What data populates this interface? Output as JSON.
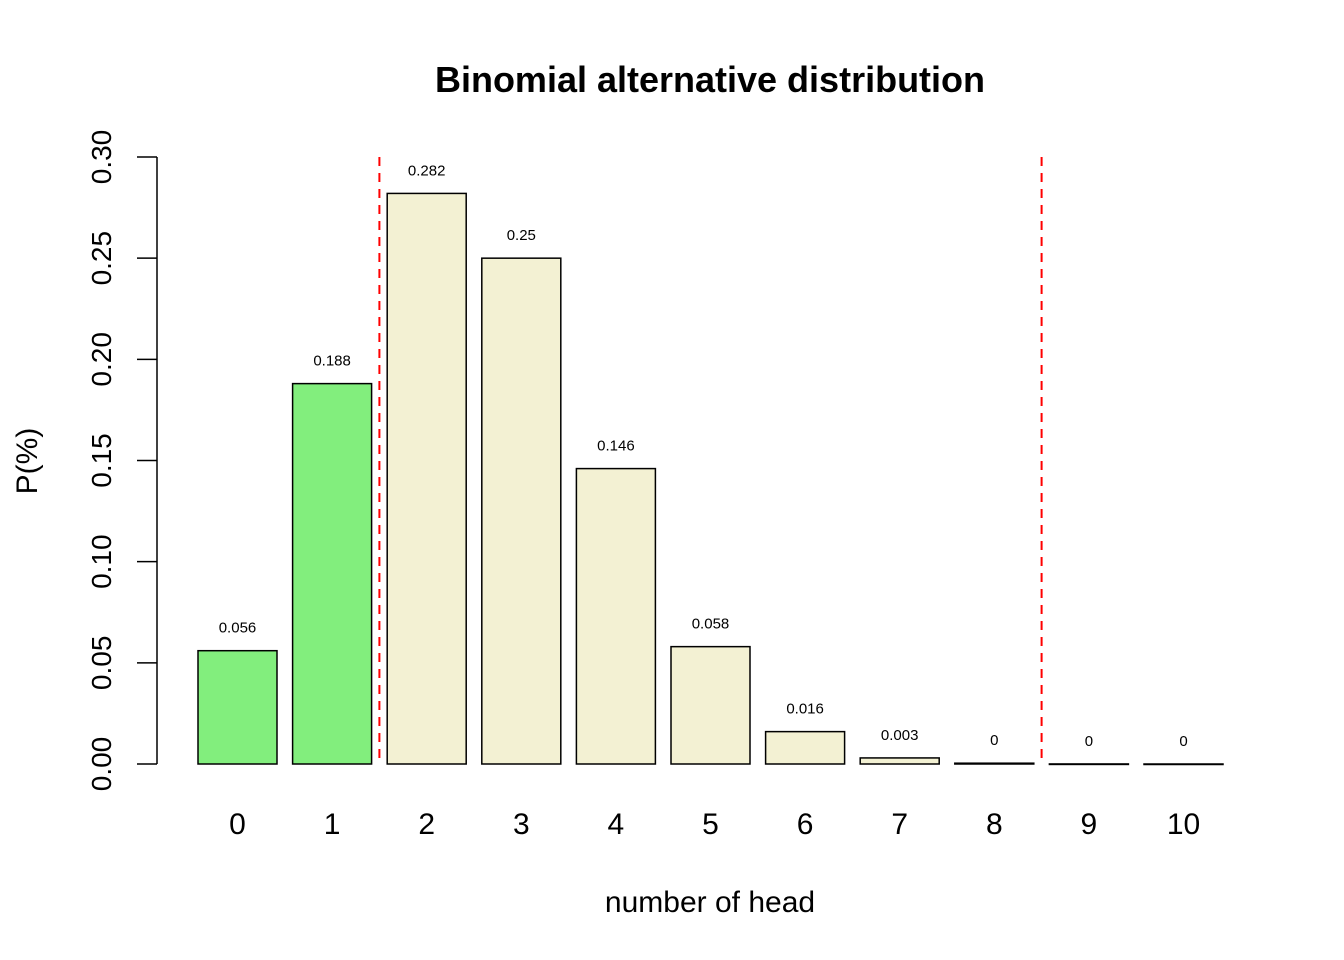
{
  "chart_data": {
    "type": "bar",
    "title": "Binomial alternative distribution",
    "xlabel": "number of head",
    "ylabel": "P(%)",
    "categories": [
      "0",
      "1",
      "2",
      "3",
      "4",
      "5",
      "6",
      "7",
      "8",
      "9",
      "10"
    ],
    "values": [
      0.056,
      0.188,
      0.282,
      0.25,
      0.146,
      0.058,
      0.016,
      0.003,
      0.0004,
      3e-05,
      1e-06
    ],
    "value_labels": [
      "0.056",
      "0.188",
      "0.282",
      "0.25",
      "0.146",
      "0.058",
      "0.016",
      "0.003",
      "0",
      "0",
      "0"
    ],
    "bar_colors": [
      "#82ee7d",
      "#82ee7d",
      "#f3f1d3",
      "#f3f1d3",
      "#f3f1d3",
      "#f3f1d3",
      "#f3f1d3",
      "#f3f1d3",
      "#f3f1d3",
      "#f3f1d3",
      "#f3f1d3"
    ],
    "highlight_color": "#82ee7d",
    "base_color": "#f3f1d3",
    "ylim": [
      0,
      0.3
    ],
    "yticks": [
      "0.00",
      "0.05",
      "0.10",
      "0.15",
      "0.20",
      "0.25",
      "0.30"
    ],
    "reference_lines": [
      {
        "between": [
          1,
          2
        ],
        "style": "dashed",
        "color": "#ff0000"
      },
      {
        "between": [
          8,
          9
        ],
        "style": "dashed",
        "color": "#ff0000"
      }
    ],
    "grid": false,
    "legend": "none"
  }
}
